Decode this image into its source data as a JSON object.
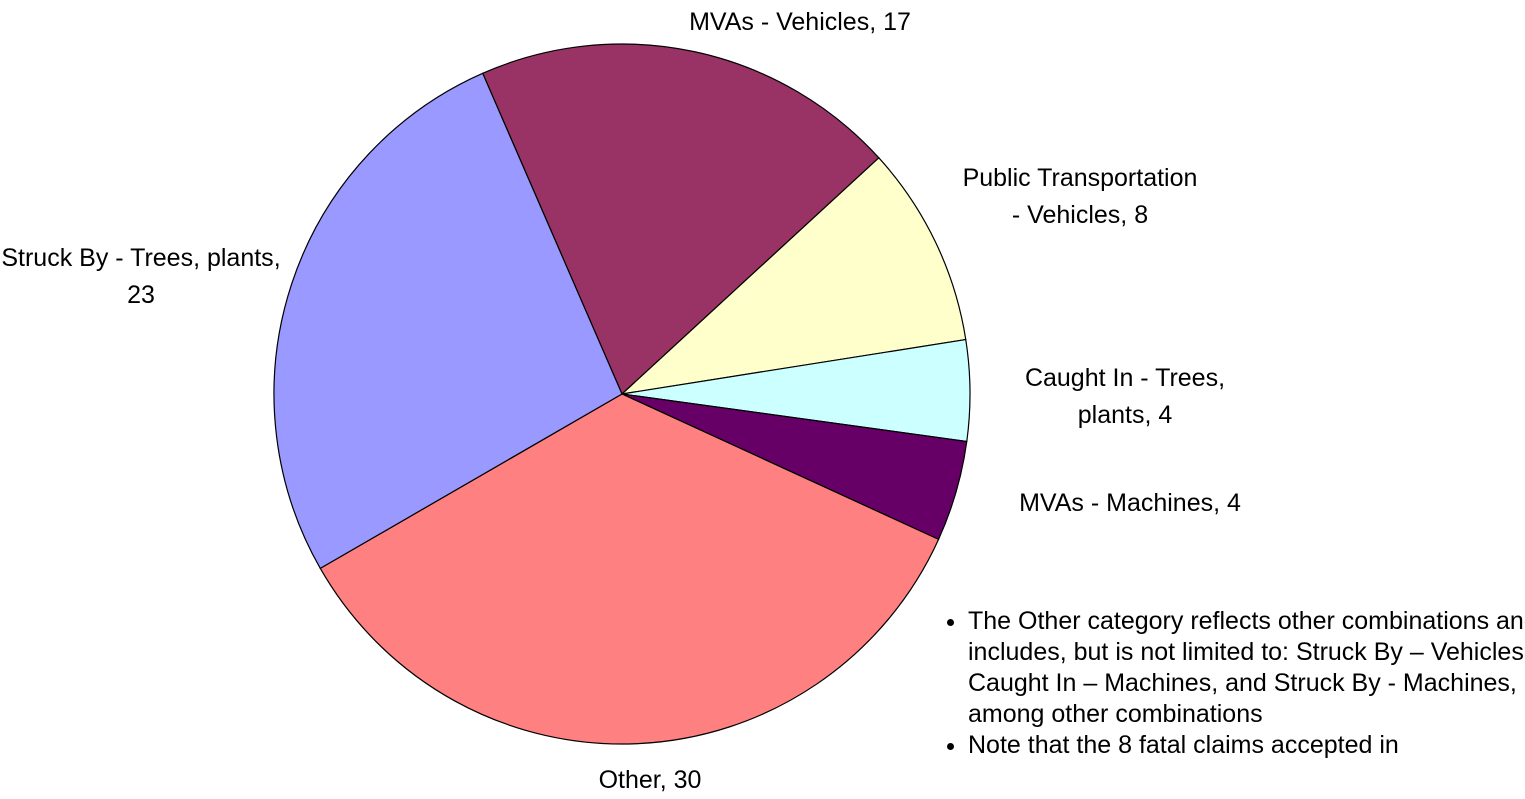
{
  "chart_data": {
    "type": "pie",
    "categories": [
      "MVAs - Vehicles",
      "Public Transportation - Vehicles",
      "Caught In - Trees, plants",
      "MVAs - Machines",
      "Other",
      "Struck By - Trees, plants"
    ],
    "values": [
      17,
      8,
      4,
      4,
      30,
      23
    ],
    "colors": [
      "#993366",
      "#ffffcc",
      "#ccffff",
      "#660066",
      "#ff8080",
      "#9999ff"
    ]
  },
  "notes": [
    "The Other category reflects other combinations and includes, but is not limited to: Struck By – Vehicles, Caught In – Machines, and Struck By - Machines, among other combinations",
    "Note that the 8 fatal claims accepted in"
  ]
}
